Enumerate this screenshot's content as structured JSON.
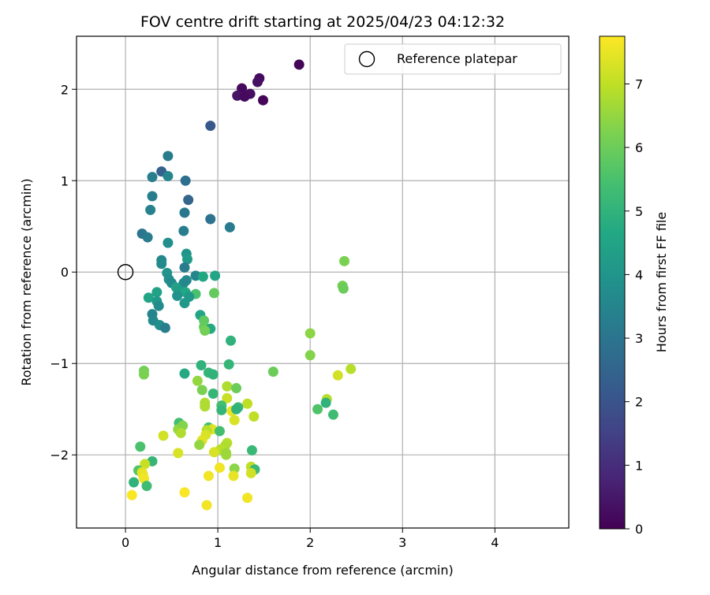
{
  "chart_data": {
    "type": "scatter",
    "title": "FOV centre drift starting at 2025/04/23 04:12:32",
    "xlabel": "Angular distance from reference (arcmin)",
    "ylabel": "Rotation from reference (arcmin)",
    "xlim": [
      -0.53,
      4.8
    ],
    "ylim": [
      -2.8,
      2.58
    ],
    "xticks": [
      0,
      1,
      2,
      3,
      4
    ],
    "yticks": [
      -2,
      -1,
      0,
      1,
      2
    ],
    "grid": true,
    "legend": {
      "label": "Reference platepar",
      "placement": "top-right"
    },
    "reference_point": {
      "x": 0,
      "y": 0
    },
    "colorbar": {
      "label": "Hours from first FF file",
      "colormap": "viridis",
      "range": [
        0,
        7.75
      ],
      "ticks": [
        0,
        1,
        2,
        3,
        4,
        5,
        6,
        7
      ]
    },
    "points": [
      {
        "x": 1.88,
        "y": 2.27,
        "h": 0.1
      },
      {
        "x": 1.45,
        "y": 2.12,
        "h": 0.2
      },
      {
        "x": 1.43,
        "y": 2.08,
        "h": 0.3
      },
      {
        "x": 1.26,
        "y": 2.01,
        "h": 0.2
      },
      {
        "x": 1.35,
        "y": 1.95,
        "h": 0.3
      },
      {
        "x": 1.21,
        "y": 1.93,
        "h": 0.4
      },
      {
        "x": 1.29,
        "y": 1.92,
        "h": 0.2
      },
      {
        "x": 1.49,
        "y": 1.88,
        "h": 0.1
      },
      {
        "x": 0.92,
        "y": 1.6,
        "h": 2.1
      },
      {
        "x": 0.46,
        "y": 1.27,
        "h": 3.2
      },
      {
        "x": 0.39,
        "y": 1.1,
        "h": 2.4
      },
      {
        "x": 0.29,
        "y": 1.04,
        "h": 3.3
      },
      {
        "x": 0.46,
        "y": 1.05,
        "h": 3.5
      },
      {
        "x": 0.65,
        "y": 1.0,
        "h": 2.8
      },
      {
        "x": 0.29,
        "y": 0.83,
        "h": 3.3
      },
      {
        "x": 0.68,
        "y": 0.79,
        "h": 2.5
      },
      {
        "x": 0.27,
        "y": 0.68,
        "h": 3.4
      },
      {
        "x": 0.64,
        "y": 0.65,
        "h": 3.1
      },
      {
        "x": 0.92,
        "y": 0.58,
        "h": 2.9
      },
      {
        "x": 1.13,
        "y": 0.49,
        "h": 3.2
      },
      {
        "x": 0.63,
        "y": 0.45,
        "h": 3.3
      },
      {
        "x": 0.18,
        "y": 0.42,
        "h": 3.0
      },
      {
        "x": 0.24,
        "y": 0.38,
        "h": 3.2
      },
      {
        "x": 0.46,
        "y": 0.32,
        "h": 3.8
      },
      {
        "x": 0.66,
        "y": 0.2,
        "h": 4.0
      },
      {
        "x": 0.39,
        "y": 0.13,
        "h": 3.6
      },
      {
        "x": 0.67,
        "y": 0.14,
        "h": 4.2
      },
      {
        "x": 0.39,
        "y": 0.09,
        "h": 3.7
      },
      {
        "x": 0.64,
        "y": 0.05,
        "h": 3.2
      },
      {
        "x": 0.45,
        "y": -0.01,
        "h": 4.0
      },
      {
        "x": 0.76,
        "y": -0.04,
        "h": 3.5
      },
      {
        "x": 0.84,
        "y": -0.05,
        "h": 4.6
      },
      {
        "x": 0.97,
        "y": -0.04,
        "h": 4.5
      },
      {
        "x": 0.47,
        "y": -0.08,
        "h": 3.8
      },
      {
        "x": 0.66,
        "y": -0.09,
        "h": 3.6
      },
      {
        "x": 0.5,
        "y": -0.12,
        "h": 3.7
      },
      {
        "x": 0.63,
        "y": -0.12,
        "h": 3.6
      },
      {
        "x": 0.55,
        "y": -0.17,
        "h": 4.4
      },
      {
        "x": 0.58,
        "y": -0.2,
        "h": 4.3
      },
      {
        "x": 0.34,
        "y": -0.22,
        "h": 4.4
      },
      {
        "x": 0.65,
        "y": -0.22,
        "h": 4.6
      },
      {
        "x": 0.76,
        "y": -0.24,
        "h": 5.5
      },
      {
        "x": 0.96,
        "y": -0.23,
        "h": 5.9
      },
      {
        "x": 0.56,
        "y": -0.26,
        "h": 3.9
      },
      {
        "x": 0.69,
        "y": -0.27,
        "h": 4.1
      },
      {
        "x": 0.25,
        "y": -0.28,
        "h": 4.5
      },
      {
        "x": 0.34,
        "y": -0.32,
        "h": 4.2
      },
      {
        "x": 0.64,
        "y": -0.34,
        "h": 4.1
      },
      {
        "x": 0.36,
        "y": -0.37,
        "h": 3.7
      },
      {
        "x": 0.29,
        "y": -0.46,
        "h": 3.5
      },
      {
        "x": 0.81,
        "y": -0.47,
        "h": 4.5
      },
      {
        "x": 0.3,
        "y": -0.53,
        "h": 3.6
      },
      {
        "x": 0.85,
        "y": -0.53,
        "h": 5.8
      },
      {
        "x": 0.37,
        "y": -0.58,
        "h": 3.8
      },
      {
        "x": 0.43,
        "y": -0.61,
        "h": 3.3
      },
      {
        "x": 0.85,
        "y": -0.6,
        "h": 5.9
      },
      {
        "x": 0.92,
        "y": -0.62,
        "h": 4.7
      },
      {
        "x": 0.86,
        "y": -0.64,
        "h": 6.1
      },
      {
        "x": 2.37,
        "y": 0.12,
        "h": 6.2
      },
      {
        "x": 2.35,
        "y": -0.15,
        "h": 6.1
      },
      {
        "x": 2.36,
        "y": -0.18,
        "h": 6.0
      },
      {
        "x": 2.0,
        "y": -0.67,
        "h": 6.4
      },
      {
        "x": 2.0,
        "y": -0.91,
        "h": 6.3
      },
      {
        "x": 1.14,
        "y": -0.75,
        "h": 5.0
      },
      {
        "x": 1.12,
        "y": -1.01,
        "h": 5.1
      },
      {
        "x": 0.82,
        "y": -1.02,
        "h": 5.0
      },
      {
        "x": 0.64,
        "y": -1.11,
        "h": 4.7
      },
      {
        "x": 0.9,
        "y": -1.1,
        "h": 5.1
      },
      {
        "x": 0.95,
        "y": -1.12,
        "h": 5.0
      },
      {
        "x": 0.2,
        "y": -1.08,
        "h": 6.1
      },
      {
        "x": 0.2,
        "y": -1.12,
        "h": 6.2
      },
      {
        "x": 1.6,
        "y": -1.09,
        "h": 6.0
      },
      {
        "x": 2.44,
        "y": -1.06,
        "h": 6.9
      },
      {
        "x": 2.3,
        "y": -1.13,
        "h": 7.2
      },
      {
        "x": 0.78,
        "y": -1.19,
        "h": 6.5
      },
      {
        "x": 1.1,
        "y": -1.25,
        "h": 6.8
      },
      {
        "x": 1.2,
        "y": -1.27,
        "h": 6.0
      },
      {
        "x": 0.83,
        "y": -1.29,
        "h": 6.2
      },
      {
        "x": 0.95,
        "y": -1.33,
        "h": 5.1
      },
      {
        "x": 1.1,
        "y": -1.38,
        "h": 7.1
      },
      {
        "x": 2.18,
        "y": -1.39,
        "h": 6.9
      },
      {
        "x": 2.17,
        "y": -1.43,
        "h": 5.0
      },
      {
        "x": 0.86,
        "y": -1.43,
        "h": 6.8
      },
      {
        "x": 1.32,
        "y": -1.44,
        "h": 7.0
      },
      {
        "x": 0.86,
        "y": -1.47,
        "h": 6.8
      },
      {
        "x": 1.04,
        "y": -1.46,
        "h": 5.4
      },
      {
        "x": 1.22,
        "y": -1.48,
        "h": 5.2
      },
      {
        "x": 2.08,
        "y": -1.5,
        "h": 5.6
      },
      {
        "x": 1.04,
        "y": -1.51,
        "h": 5.1
      },
      {
        "x": 1.15,
        "y": -1.52,
        "h": 7.5
      },
      {
        "x": 1.2,
        "y": -1.5,
        "h": 5.0
      },
      {
        "x": 2.25,
        "y": -1.56,
        "h": 5.3
      },
      {
        "x": 1.39,
        "y": -1.58,
        "h": 7.0
      },
      {
        "x": 1.18,
        "y": -1.62,
        "h": 7.3
      },
      {
        "x": 0.58,
        "y": -1.65,
        "h": 5.4
      },
      {
        "x": 0.57,
        "y": -1.72,
        "h": 6.5
      },
      {
        "x": 0.62,
        "y": -1.68,
        "h": 6.3
      },
      {
        "x": 0.9,
        "y": -1.7,
        "h": 5.4
      },
      {
        "x": 0.94,
        "y": -1.72,
        "h": 7.4
      },
      {
        "x": 0.88,
        "y": -1.73,
        "h": 6.9
      },
      {
        "x": 1.02,
        "y": -1.74,
        "h": 5.4
      },
      {
        "x": 0.6,
        "y": -1.76,
        "h": 6.8
      },
      {
        "x": 0.41,
        "y": -1.79,
        "h": 7.2
      },
      {
        "x": 0.87,
        "y": -1.78,
        "h": 7.3
      },
      {
        "x": 0.83,
        "y": -1.84,
        "h": 7.4
      },
      {
        "x": 1.1,
        "y": -1.87,
        "h": 6.9
      },
      {
        "x": 0.8,
        "y": -1.89,
        "h": 6.5
      },
      {
        "x": 1.08,
        "y": -1.9,
        "h": 6.8
      },
      {
        "x": 0.16,
        "y": -1.91,
        "h": 5.5
      },
      {
        "x": 1.03,
        "y": -1.94,
        "h": 6.9
      },
      {
        "x": 1.37,
        "y": -1.95,
        "h": 5.2
      },
      {
        "x": 0.96,
        "y": -1.97,
        "h": 7.3
      },
      {
        "x": 1.09,
        "y": -1.98,
        "h": 6.6
      },
      {
        "x": 0.57,
        "y": -1.98,
        "h": 7.3
      },
      {
        "x": 1.09,
        "y": -2.0,
        "h": 6.6
      },
      {
        "x": 0.29,
        "y": -2.07,
        "h": 5.1
      },
      {
        "x": 0.21,
        "y": -2.1,
        "h": 7.1
      },
      {
        "x": 1.02,
        "y": -2.14,
        "h": 7.6
      },
      {
        "x": 1.36,
        "y": -2.13,
        "h": 7.0
      },
      {
        "x": 1.18,
        "y": -2.15,
        "h": 6.4
      },
      {
        "x": 1.4,
        "y": -2.16,
        "h": 5.2
      },
      {
        "x": 0.14,
        "y": -2.17,
        "h": 5.7
      },
      {
        "x": 0.18,
        "y": -2.19,
        "h": 7.4
      },
      {
        "x": 1.36,
        "y": -2.2,
        "h": 7.2
      },
      {
        "x": 0.19,
        "y": -2.22,
        "h": 7.5
      },
      {
        "x": 0.9,
        "y": -2.23,
        "h": 7.6
      },
      {
        "x": 1.17,
        "y": -2.23,
        "h": 7.5
      },
      {
        "x": 0.2,
        "y": -2.26,
        "h": 7.6
      },
      {
        "x": 0.09,
        "y": -2.3,
        "h": 5.0
      },
      {
        "x": 0.23,
        "y": -2.34,
        "h": 5.3
      },
      {
        "x": 0.64,
        "y": -2.41,
        "h": 7.7
      },
      {
        "x": 0.07,
        "y": -2.44,
        "h": 7.7
      },
      {
        "x": 1.32,
        "y": -2.47,
        "h": 7.6
      },
      {
        "x": 0.88,
        "y": -2.55,
        "h": 7.6
      }
    ]
  }
}
